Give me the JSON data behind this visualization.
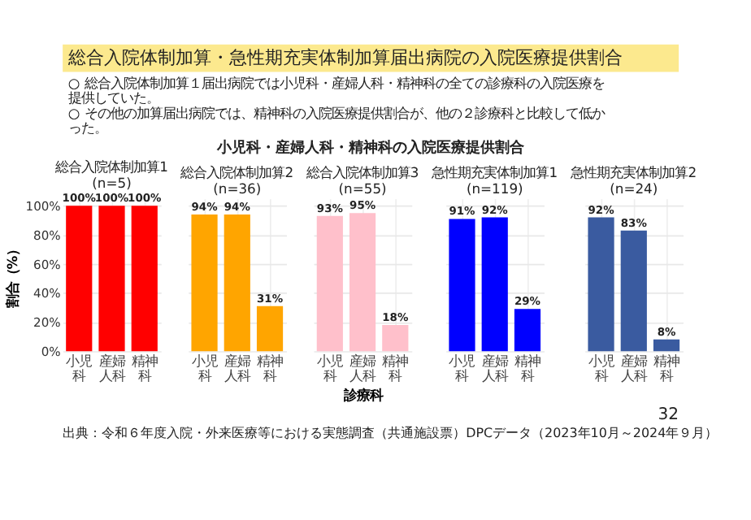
{
  "chart_data": [
    {
      "type": "bar",
      "title": "総合入院体制加算1(n=5)",
      "categories": [
        "小児科",
        "産婦人科",
        "精神科"
      ],
      "ylabel": "割合（%）",
      "ylim": [
        0,
        105
      ],
      "yticks": [
        {
          "value": 0,
          "label": "0%"
        },
        {
          "value": 20,
          "label": "20%"
        },
        {
          "value": 40,
          "label": "40%"
        },
        {
          "value": 60,
          "label": "60%"
        },
        {
          "value": 80,
          "label": "80%"
        },
        {
          "value": 100,
          "label": "100%"
        }
      ],
      "series": [
        {
          "color": "#ff0000",
          "values": [
            100,
            100,
            100
          ],
          "value_labels": [
            "100%",
            "100%",
            "100%"
          ]
        }
      ],
      "grid": true,
      "annotations": [
        "総合入院体制加算・急性期充実体制加算届出病院の入院医療提供割合",
        "○ 総合入院体制加算１届出病院では小児科・産婦人科・精神科の全ての診療科の入院医療を提供していた。",
        "○ その他の加算届出病院では、精神科の入院医療提供割合が、他の２診療科と比較して低かった。",
        "小児科・産婦人科・精神科の入院医療提供割合",
        "出典：令和６年度入院・外来医療等における実態調査（共通施設票）DPCデータ（2023年10月～2024年９月）",
        "32"
      ]
    },
    {
      "type": "bar",
      "title": "総合入院体制加算2(n=36)",
      "categories": [
        "小児科",
        "産婦人科",
        "精神科"
      ],
      "ylim": [
        0,
        105
      ],
      "yticks": [
        {
          "value": 0,
          "label": null
        },
        {
          "value": 20,
          "label": null
        },
        {
          "value": 40,
          "label": null
        },
        {
          "value": 60,
          "label": null
        },
        {
          "value": 80,
          "label": null
        },
        {
          "value": 100,
          "label": null
        }
      ],
      "series": [
        {
          "color": "#ffa500",
          "values": [
            94,
            94,
            31
          ],
          "value_labels": [
            "94%",
            "94%",
            "31%"
          ]
        }
      ],
      "grid": true,
      "tick_labels": "x"
    },
    {
      "type": "bar",
      "title": "総合入院体制加算3(n=55)",
      "categories": [
        "小児科",
        "産婦人科",
        "精神科"
      ],
      "xlabel": "診療科",
      "ylim": [
        0,
        105
      ],
      "yticks": [
        {
          "value": 0,
          "label": null
        },
        {
          "value": 20,
          "label": null
        },
        {
          "value": 40,
          "label": null
        },
        {
          "value": 60,
          "label": null
        },
        {
          "value": 80,
          "label": null
        },
        {
          "value": 100,
          "label": null
        }
      ],
      "series": [
        {
          "color": "#ffc0cb",
          "values": [
            93,
            95,
            18
          ],
          "value_labels": [
            "93%",
            "95%",
            "18%"
          ]
        }
      ],
      "grid": true,
      "tick_labels": "x"
    },
    {
      "type": "bar",
      "title": "急性期充実体制加算1(n=119)",
      "categories": [
        "小児科",
        "産婦人科",
        "精神科"
      ],
      "ylim": [
        0,
        105
      ],
      "yticks": [
        {
          "value": 0,
          "label": null
        },
        {
          "value": 20,
          "label": null
        },
        {
          "value": 40,
          "label": null
        },
        {
          "value": 60,
          "label": null
        },
        {
          "value": 80,
          "label": null
        },
        {
          "value": 100,
          "label": null
        }
      ],
      "series": [
        {
          "color": "#0000ff",
          "values": [
            91,
            92,
            29
          ],
          "value_labels": [
            "91%",
            "92%",
            "29%"
          ]
        }
      ],
      "grid": true,
      "tick_labels": "x"
    },
    {
      "type": "bar",
      "title": "急性期充実体制加算2(n=24)",
      "categories": [
        "小児科",
        "産婦人科",
        "精神科"
      ],
      "ylim": [
        0,
        105
      ],
      "yticks": [
        {
          "value": 0,
          "label": null
        },
        {
          "value": 20,
          "label": null
        },
        {
          "value": 40,
          "label": null
        },
        {
          "value": 60,
          "label": null
        },
        {
          "value": 80,
          "label": null
        },
        {
          "value": 100,
          "label": null
        }
      ],
      "series": [
        {
          "color": "#3a5ba0",
          "values": [
            92,
            83,
            8
          ],
          "value_labels": [
            "92%",
            "83%",
            "8%"
          ]
        }
      ],
      "grid": true,
      "tick_labels": "x"
    }
  ]
}
